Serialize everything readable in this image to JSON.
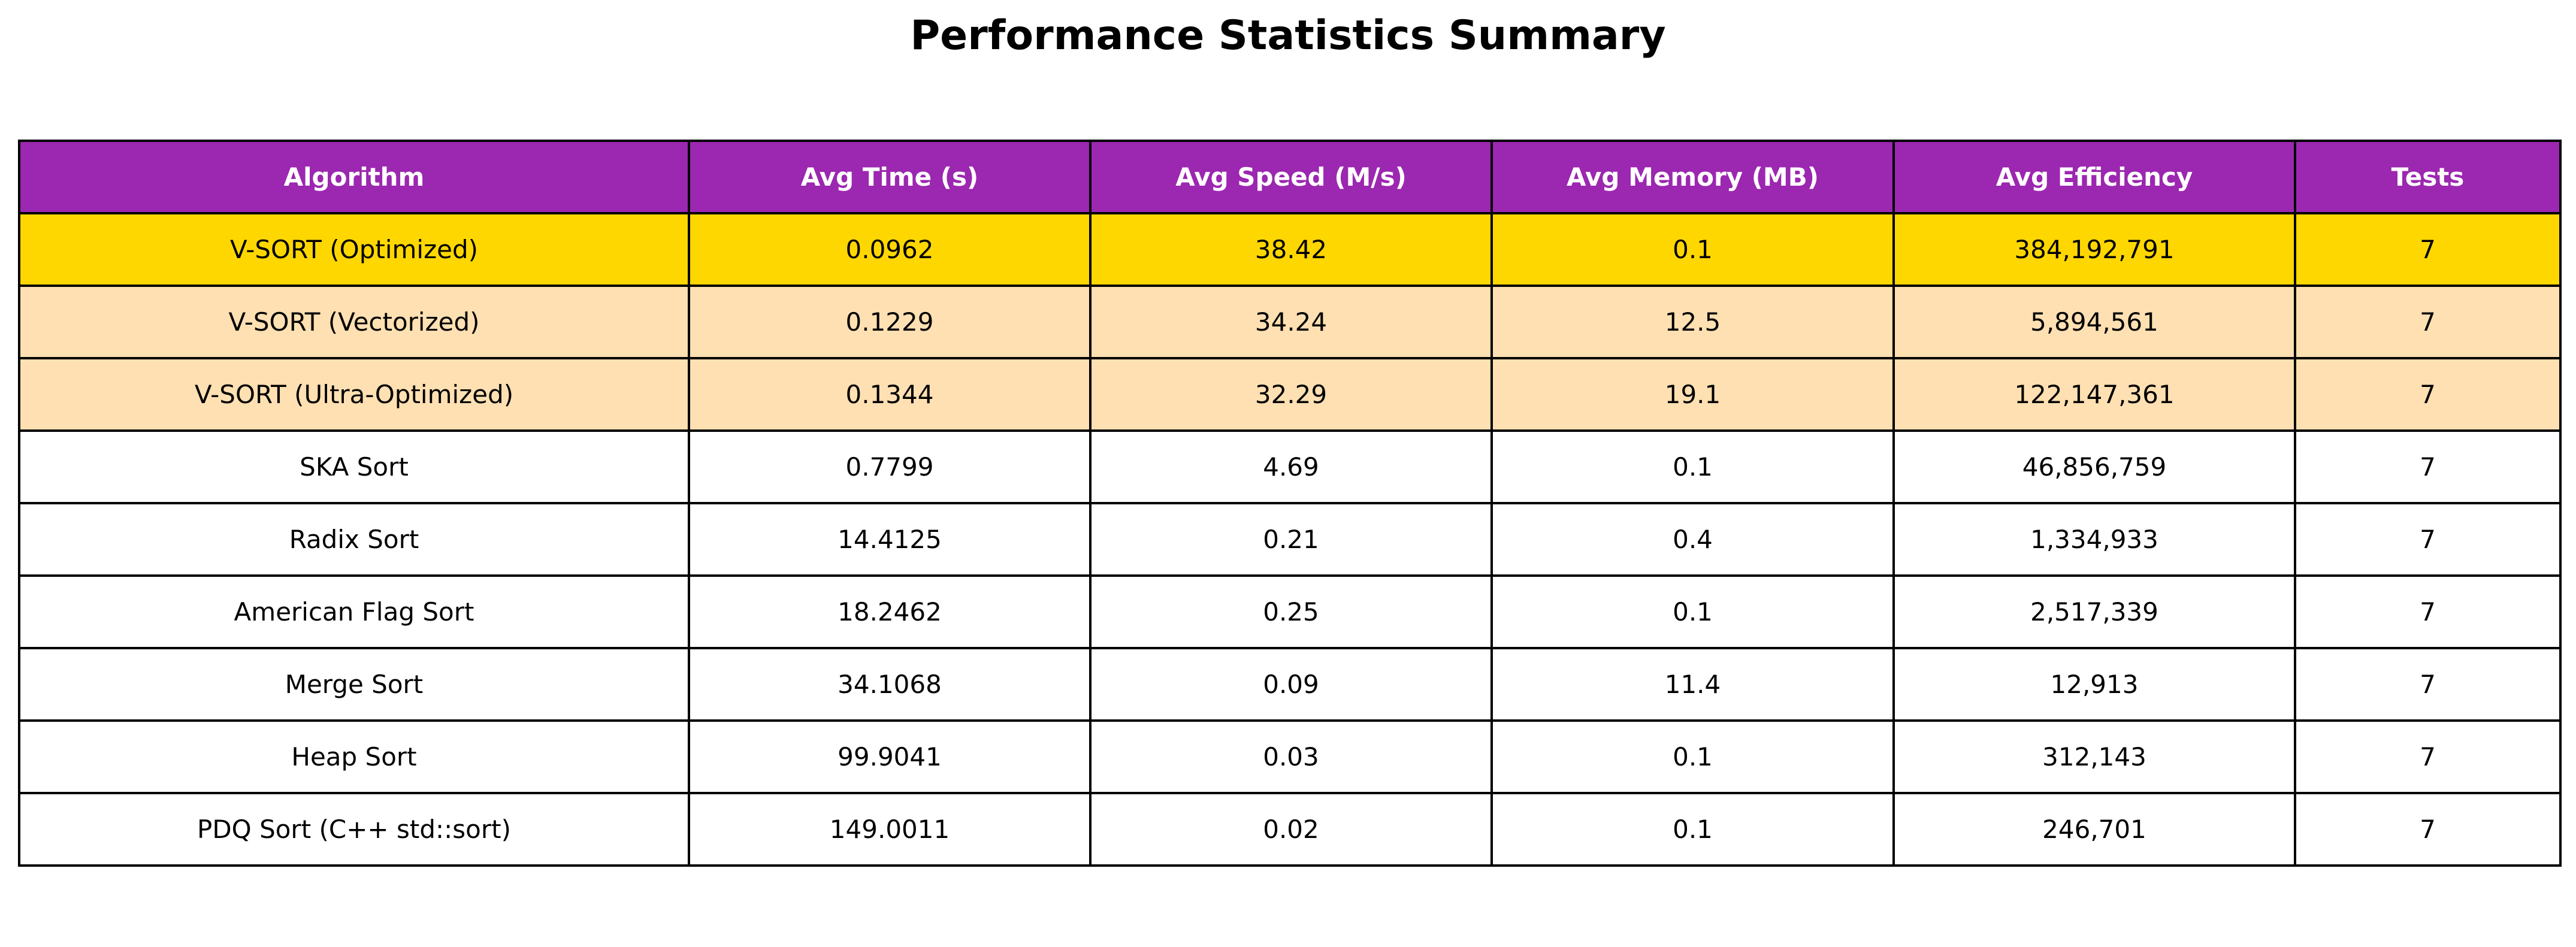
{
  "title": "Performance Statistics Summary",
  "colors": {
    "header_bg": "#9c27b0",
    "header_text": "#ffffff",
    "row_best": "#ffd700",
    "row_vsort": "#ffe0b2",
    "row_default": "#ffffff",
    "border": "#000000"
  },
  "chart_data": {
    "type": "table",
    "title": "Performance Statistics Summary",
    "columns": [
      "Algorithm",
      "Avg Time (s)",
      "Avg Speed (M/s)",
      "Avg Memory (MB)",
      "Avg Efficiency",
      "Tests"
    ],
    "rows": [
      {
        "cells": [
          "V-SORT (Optimized)",
          "0.0962",
          "38.42",
          "0.1",
          "384,192,791",
          "7"
        ],
        "highlight": "best"
      },
      {
        "cells": [
          "V-SORT (Vectorized)",
          "0.1229",
          "34.24",
          "12.5",
          "5,894,561",
          "7"
        ],
        "highlight": "vsort"
      },
      {
        "cells": [
          "V-SORT (Ultra-Optimized)",
          "0.1344",
          "32.29",
          "19.1",
          "122,147,361",
          "7"
        ],
        "highlight": "vsort"
      },
      {
        "cells": [
          "SKA Sort",
          "0.7799",
          "4.69",
          "0.1",
          "46,856,759",
          "7"
        ],
        "highlight": "none"
      },
      {
        "cells": [
          "Radix Sort",
          "14.4125",
          "0.21",
          "0.4",
          "1,334,933",
          "7"
        ],
        "highlight": "none"
      },
      {
        "cells": [
          "American Flag Sort",
          "18.2462",
          "0.25",
          "0.1",
          "2,517,339",
          "7"
        ],
        "highlight": "none"
      },
      {
        "cells": [
          "Merge Sort",
          "34.1068",
          "0.09",
          "11.4",
          "12,913",
          "7"
        ],
        "highlight": "none"
      },
      {
        "cells": [
          "Heap Sort",
          "99.9041",
          "0.03",
          "0.1",
          "312,143",
          "7"
        ],
        "highlight": "none"
      },
      {
        "cells": [
          "PDQ Sort (C++ std::sort)",
          "149.0011",
          "0.02",
          "0.1",
          "246,701",
          "7"
        ],
        "highlight": "none"
      }
    ]
  }
}
